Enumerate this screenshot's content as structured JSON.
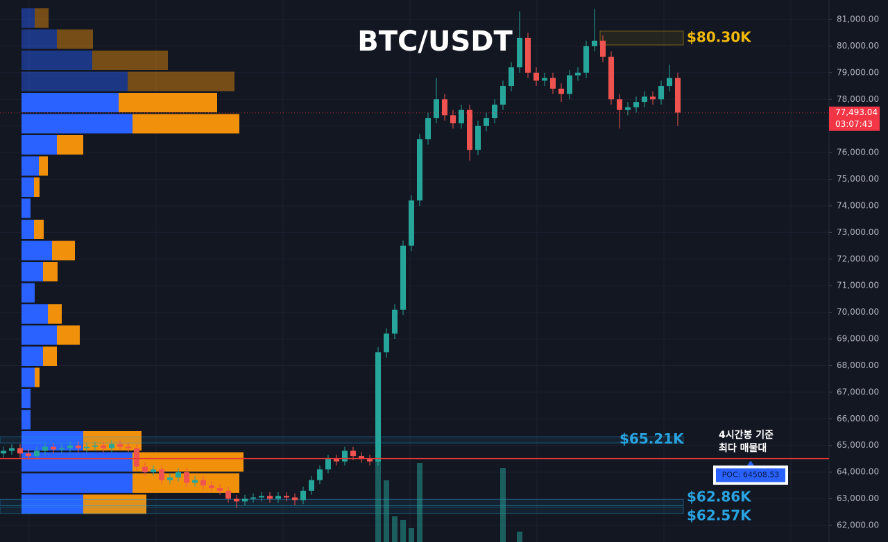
{
  "chart_data": {
    "type": "candlestick",
    "title": "BTC/USDT",
    "ylim": [
      61375,
      81729
    ],
    "yticks": [
      {
        "value": 62000,
        "label": "62,000.00"
      },
      {
        "value": 63000,
        "label": "63,000.00"
      },
      {
        "value": 64000,
        "label": "64,000.00"
      },
      {
        "value": 65000,
        "label": "65,000.00"
      },
      {
        "value": 66000,
        "label": "66,000.00"
      },
      {
        "value": 67000,
        "label": "67,000.00"
      },
      {
        "value": 68000,
        "label": "68,000.00"
      },
      {
        "value": 69000,
        "label": "69,000.00"
      },
      {
        "value": 70000,
        "label": "70,000.00"
      },
      {
        "value": 71000,
        "label": "71,000.00"
      },
      {
        "value": 72000,
        "label": "72,000.00"
      },
      {
        "value": 73000,
        "label": "73,000.00"
      },
      {
        "value": 74000,
        "label": "74,000.00"
      },
      {
        "value": 75000,
        "label": "75,000.00"
      },
      {
        "value": 76000,
        "label": "76,000.00"
      },
      {
        "value": 77000,
        "label": "77,000.00"
      },
      {
        "value": 78000,
        "label": "78,000.00"
      },
      {
        "value": 79000,
        "label": "79,000.00"
      },
      {
        "value": 80000,
        "label": "80,000.00"
      },
      {
        "value": 81000,
        "label": "81,000.00"
      }
    ],
    "grid": true,
    "up_color": "#26a69a",
    "down_color": "#ef5350",
    "open": [
      64700,
      64800,
      64900,
      64700,
      64600,
      64800,
      64950,
      64850,
      64900,
      65000,
      64900,
      64950,
      65000,
      64900,
      65050,
      64950,
      64900,
      64200,
      64000,
      64100,
      63700,
      63800,
      64000,
      63600,
      63700,
      63500,
      63400,
      63300,
      63000,
      62900,
      63000,
      63050,
      63100,
      63000,
      63100,
      63050,
      62950,
      63300,
      63700,
      64100,
      64500,
      64400,
      64800,
      64600,
      64500,
      64400,
      68500,
      69200,
      70100,
      72500,
      74200,
      76500,
      77300,
      78000,
      77400,
      77100,
      77600,
      76100,
      77000,
      77300,
      77800,
      78500,
      79200,
      80300,
      79000,
      78700,
      78800,
      78400,
      78200,
      78900,
      79000,
      80000,
      80200,
      79600,
      78000,
      77600,
      77700,
      77900,
      78100,
      78000,
      78500,
      78800
    ],
    "high": [
      64950,
      65050,
      65050,
      64850,
      64950,
      65100,
      65100,
      65050,
      65150,
      65150,
      65100,
      65150,
      65150,
      65200,
      65200,
      65100,
      65050,
      64350,
      64250,
      64250,
      63950,
      64150,
      64150,
      63850,
      63850,
      63650,
      63550,
      63450,
      63150,
      63150,
      63200,
      63250,
      63250,
      63250,
      63250,
      63200,
      63450,
      63850,
      64250,
      64650,
      64650,
      64950,
      64950,
      64750,
      64650,
      68700,
      69400,
      70300,
      72700,
      74400,
      76700,
      77500,
      78800,
      78200,
      77600,
      77800,
      77800,
      77200,
      77500,
      78000,
      78700,
      79400,
      81300,
      80500,
      79200,
      79000,
      79000,
      78600,
      79100,
      79200,
      80200,
      81400,
      80400,
      79800,
      78200,
      77900,
      78100,
      78300,
      78300,
      78700,
      79300,
      79000
    ],
    "low": [
      64550,
      64650,
      64550,
      64450,
      64450,
      64650,
      64700,
      64700,
      64750,
      64750,
      64750,
      64800,
      64750,
      64750,
      64800,
      64750,
      64050,
      63850,
      63850,
      63550,
      63550,
      63650,
      63450,
      63450,
      63350,
      63250,
      63150,
      62850,
      62650,
      62750,
      62850,
      62900,
      62850,
      62850,
      62900,
      62750,
      62800,
      63150,
      63550,
      63950,
      64250,
      64250,
      64450,
      64350,
      64250,
      64250,
      68300,
      69000,
      69900,
      72300,
      74000,
      76300,
      77100,
      77200,
      76900,
      76900,
      75700,
      75900,
      76800,
      77100,
      77600,
      78300,
      79000,
      78800,
      78500,
      78500,
      78200,
      77900,
      78000,
      78700,
      78800,
      79800,
      79400,
      77800,
      76900,
      77400,
      77500,
      77700,
      77800,
      77800,
      78300,
      77000
    ],
    "close": [
      64800,
      64900,
      64700,
      64600,
      64800,
      64950,
      64850,
      64900,
      65000,
      64900,
      64950,
      65000,
      64900,
      65050,
      64950,
      64900,
      64200,
      64000,
      64100,
      63700,
      63800,
      64000,
      63600,
      63700,
      63500,
      63400,
      63300,
      63000,
      62900,
      63000,
      63050,
      63100,
      63000,
      63100,
      63050,
      62950,
      63300,
      63700,
      64100,
      64500,
      64400,
      64800,
      64600,
      64500,
      64400,
      68500,
      69200,
      70100,
      72500,
      74200,
      76500,
      77300,
      78000,
      77400,
      77100,
      77600,
      76100,
      77000,
      77300,
      77800,
      78500,
      79200,
      80300,
      79000,
      78700,
      78800,
      78400,
      78200,
      78900,
      79000,
      80000,
      80200,
      79600,
      78000,
      77600,
      77700,
      77900,
      78100,
      78000,
      78500,
      78800,
      77500
    ],
    "volume": [
      null,
      null,
      null,
      null,
      null,
      null,
      null,
      null,
      null,
      null,
      null,
      null,
      null,
      null,
      null,
      null,
      null,
      null,
      null,
      null,
      null,
      null,
      null,
      null,
      null,
      null,
      null,
      null,
      null,
      null,
      null,
      null,
      null,
      null,
      null,
      null,
      null,
      null,
      null,
      null,
      null,
      null,
      null,
      null,
      null,
      204,
      89,
      37,
      32,
      20,
      114,
      null,
      null,
      null,
      null,
      null,
      null,
      null,
      null,
      null,
      107,
      null,
      15,
      null,
      null,
      null,
      null,
      null,
      null,
      null,
      null,
      null,
      null,
      null,
      null,
      null,
      null,
      null,
      null,
      null,
      null,
      null
    ],
    "volume_color": "#26a69a",
    "volume_profile": {
      "buy": [
        19,
        51,
        102,
        153,
        140,
        160,
        51,
        25,
        18,
        13,
        18,
        44,
        31,
        19,
        38,
        51,
        31,
        19,
        13,
        13,
        89,
        160,
        160,
        89
      ],
      "sell": [
        20,
        52,
        109,
        154,
        142,
        154,
        38,
        13,
        8,
        0,
        14,
        33,
        21,
        0,
        20,
        33,
        20,
        7,
        0,
        0,
        84,
        160,
        154,
        91
      ],
      "buy_color": "#2962ff",
      "sell_color": "#f0900b"
    },
    "levels": [
      {
        "value": 80300,
        "label": "$80.30K",
        "color": "#f0b90b"
      },
      {
        "value": 65210,
        "label": "$65.21K",
        "color": "#29a3e0"
      },
      {
        "value": 62860,
        "label": "$62.86K",
        "color": "#29a3e0"
      },
      {
        "value": 62570,
        "label": "$62.57K",
        "color": "#29a3e0"
      }
    ],
    "poc": {
      "value": 64508.53,
      "label": "POC: 64508.53",
      "note": [
        "4시간봉 기준",
        "최다 매물대"
      ],
      "color": "#e53935"
    },
    "last_price": {
      "value": 77493.04,
      "label": "77,493.04",
      "timer": "03:07:43",
      "color": "#f23645"
    }
  }
}
